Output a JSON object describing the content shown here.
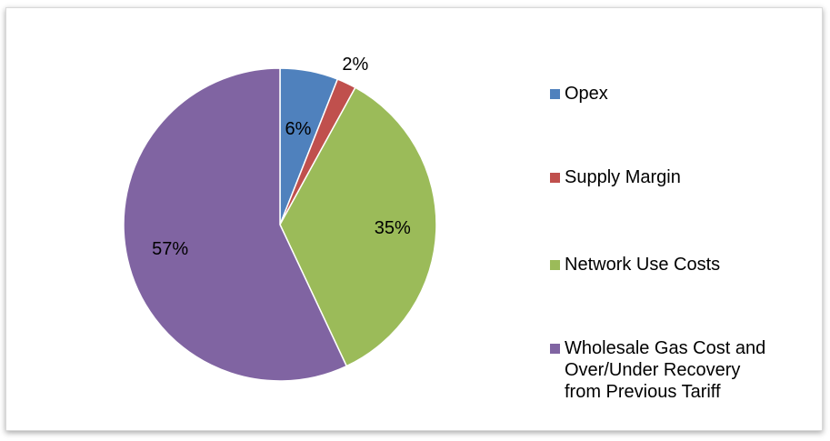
{
  "chart_data": {
    "type": "pie",
    "title": "",
    "categories": [
      "Opex",
      "Supply Margin",
      "Network Use Costs",
      "Wholesale Gas Cost and\nOver/Under Recovery\nfrom Previous Tariff"
    ],
    "values": [
      6,
      2,
      35,
      57
    ],
    "data_labels": [
      "6%",
      "2%",
      "35%",
      "57%"
    ],
    "colors": [
      "#4f81bd",
      "#c0504d",
      "#9bbb59",
      "#8064a2"
    ],
    "start_angle_deg": 0,
    "direction": "clockwise",
    "legend_placement": "right"
  }
}
